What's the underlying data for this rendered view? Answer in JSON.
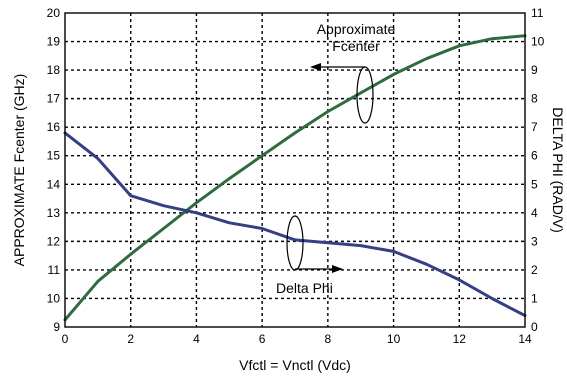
{
  "chart_data": {
    "type": "line",
    "xlabel": "Vfctl = Vnctl (Vdc)",
    "ylabel_left": "APPROXIMATE Fcenter (GHz)",
    "ylabel_right": "DELTA PHI (RAD/V)",
    "xlim": [
      0,
      14
    ],
    "ylim_left": [
      9,
      20
    ],
    "ylim_right": [
      0,
      11
    ],
    "x_ticks": [
      0,
      2,
      4,
      6,
      8,
      10,
      12,
      14
    ],
    "y_ticks_left": [
      9,
      10,
      11,
      12,
      13,
      14,
      15,
      16,
      17,
      18,
      19,
      20
    ],
    "y_ticks_right": [
      0,
      1,
      2,
      3,
      4,
      5,
      6,
      7,
      8,
      9,
      10,
      11
    ],
    "grid": true,
    "series": [
      {
        "name": "Approximate Fcenter",
        "axis": "left",
        "color": "#2e6b3f",
        "x": [
          0,
          1,
          2,
          3,
          4,
          5,
          6,
          7,
          8,
          9,
          10,
          11,
          12,
          13,
          14
        ],
        "y": [
          9.25,
          10.6,
          11.55,
          12.45,
          13.35,
          14.2,
          15.0,
          15.8,
          16.55,
          17.2,
          17.85,
          18.4,
          18.85,
          19.1,
          19.2
        ]
      },
      {
        "name": "Delta Phi",
        "axis": "right",
        "color": "#343f84",
        "x": [
          0,
          1,
          2,
          3,
          4,
          5,
          6,
          7,
          8,
          9,
          10,
          11,
          12,
          13,
          14
        ],
        "y": [
          6.8,
          5.9,
          4.6,
          4.25,
          4.0,
          3.65,
          3.45,
          3.05,
          2.95,
          2.85,
          2.65,
          2.2,
          1.65,
          1.0,
          0.4
        ]
      }
    ],
    "annotations": [
      {
        "lines": [
          "Approximate",
          "Fcenter"
        ],
        "points_to": "left"
      },
      {
        "lines": [
          "Delta Phi"
        ],
        "points_to": "right"
      }
    ]
  }
}
